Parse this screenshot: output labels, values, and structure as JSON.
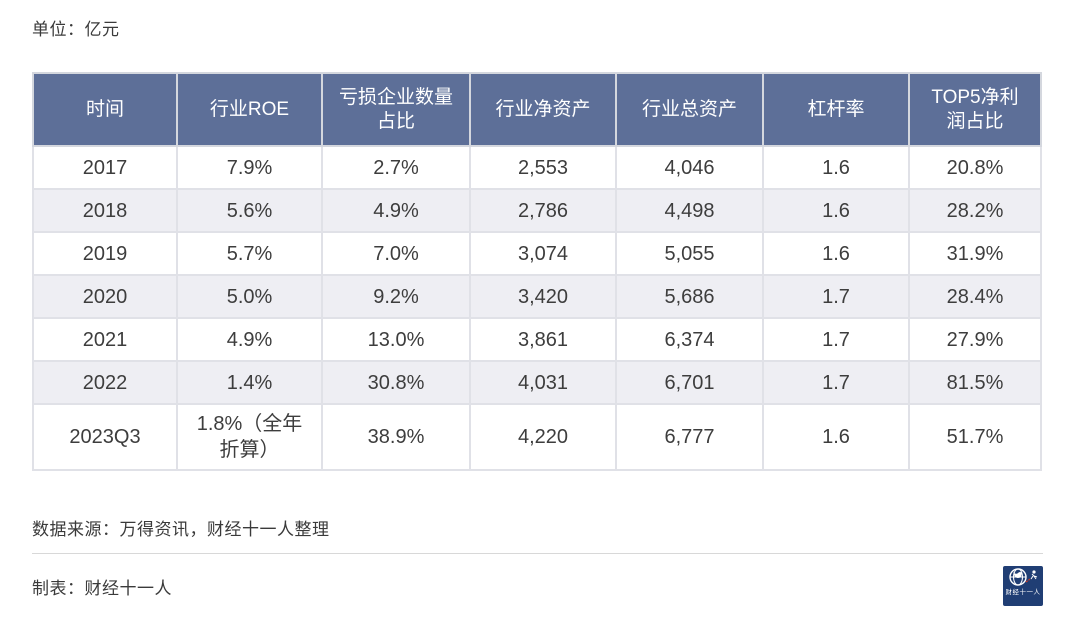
{
  "page": {
    "unit_label": "单位：亿元",
    "source_note": "数据来源：万得资讯，财经十一人整理",
    "credit_note": "制表：财经十一人",
    "logo_text": "财经十一人"
  },
  "colors": {
    "header_bg": "#5d6f98",
    "stripe_bg": "#eeeef3",
    "logo_bg": "#203e74",
    "body_text": "#3d3d3d"
  },
  "chart_data": {
    "type": "table",
    "title": "",
    "unit": "亿元",
    "columns": [
      "时间",
      "行业ROE",
      "亏损企业数量占比",
      "行业净资产",
      "行业总资产",
      "杠杆率",
      "TOP5净利润占比"
    ],
    "rows": [
      [
        "2017",
        "7.9%",
        "2.7%",
        "2,553",
        "4,046",
        "1.6",
        "20.8%"
      ],
      [
        "2018",
        "5.6%",
        "4.9%",
        "2,786",
        "4,498",
        "1.6",
        "28.2%"
      ],
      [
        "2019",
        "5.7%",
        "7.0%",
        "3,074",
        "5,055",
        "1.6",
        "31.9%"
      ],
      [
        "2020",
        "5.0%",
        "9.2%",
        "3,420",
        "5,686",
        "1.7",
        "28.4%"
      ],
      [
        "2021",
        "4.9%",
        "13.0%",
        "3,861",
        "6,374",
        "1.7",
        "27.9%"
      ],
      [
        "2022",
        "1.4%",
        "30.8%",
        "4,031",
        "6,701",
        "1.7",
        "81.5%"
      ],
      [
        "2023Q3",
        "1.8%（全年折算）",
        "38.9%",
        "4,220",
        "6,777",
        "1.6",
        "51.7%"
      ]
    ]
  }
}
